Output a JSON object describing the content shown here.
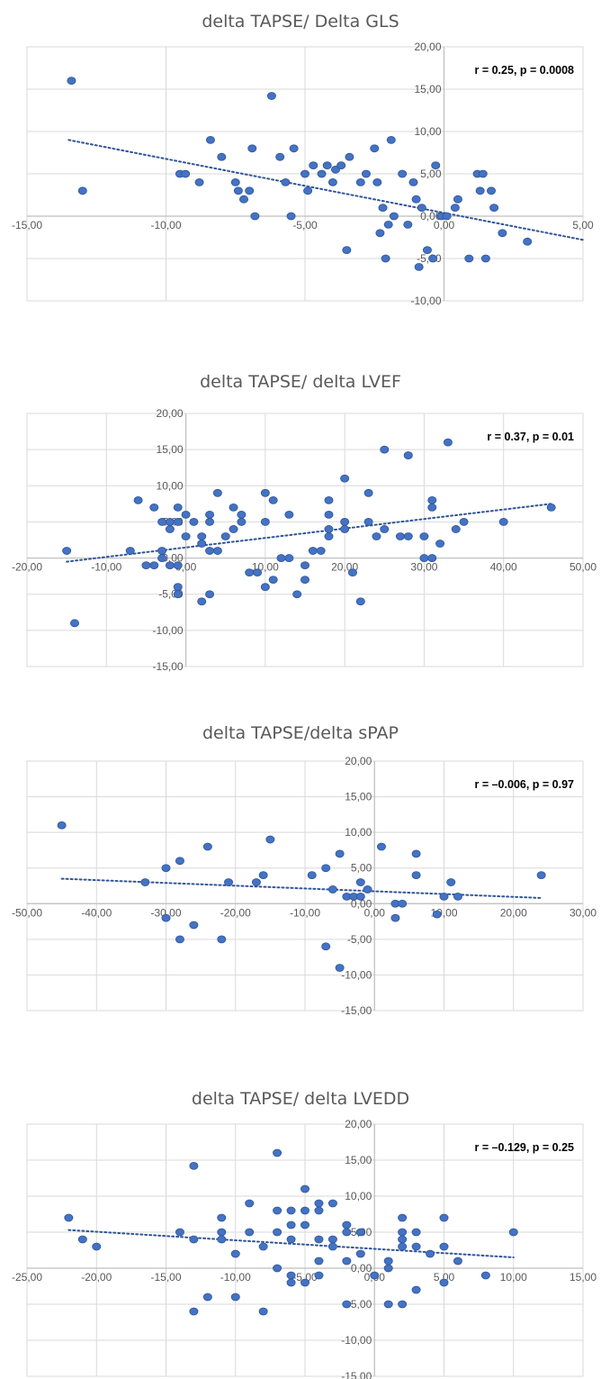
{
  "colors": {
    "point": "#4472C4",
    "point_edge": "#2F5597",
    "trend": "#2F5597",
    "grid": "#D9D9D9",
    "axis": "#BFBFBF",
    "text": "#595959"
  },
  "chart_data": [
    {
      "type": "scatter",
      "title": "delta TAPSE/ Delta GLS",
      "annotation": "r = 0.25, p = 0.0008",
      "xlim": [
        -15,
        5
      ],
      "x_step": 5,
      "ylim": [
        -10,
        20
      ],
      "y_step": 5,
      "x_tick_labels": [
        "-15,00",
        "-10,00",
        "-5,00",
        "0,00",
        "5,00"
      ],
      "y_tick_labels": [
        "-10,00",
        "-5,00",
        "0,00",
        "5,00",
        "10,00",
        "15,00",
        "20,00"
      ],
      "trendline": {
        "type": "linear",
        "dotted": true,
        "from": [
          -13.5,
          9
        ],
        "to": [
          5,
          -2.8
        ]
      },
      "grid": true,
      "points": [
        [
          -13.4,
          16
        ],
        [
          -13,
          3
        ],
        [
          -9.5,
          5
        ],
        [
          -9.3,
          5
        ],
        [
          -8.8,
          4
        ],
        [
          -8.4,
          9
        ],
        [
          -8.0,
          7
        ],
        [
          -7.5,
          4
        ],
        [
          -7.4,
          3
        ],
        [
          -7.2,
          2
        ],
        [
          -7.0,
          3
        ],
        [
          -6.9,
          8
        ],
        [
          -6.8,
          0
        ],
        [
          -6.2,
          14.2
        ],
        [
          -5.9,
          7
        ],
        [
          -5.7,
          4
        ],
        [
          -5.5,
          0
        ],
        [
          -5.4,
          8
        ],
        [
          -5.0,
          5
        ],
        [
          -4.9,
          3
        ],
        [
          -4.7,
          6
        ],
        [
          -4.4,
          5
        ],
        [
          -4.2,
          6
        ],
        [
          -4.0,
          4
        ],
        [
          -3.9,
          5.5
        ],
        [
          -3.7,
          6
        ],
        [
          -3.5,
          -4
        ],
        [
          -3.4,
          7
        ],
        [
          -3.0,
          4
        ],
        [
          -2.8,
          5
        ],
        [
          -2.5,
          8
        ],
        [
          -2.4,
          4
        ],
        [
          -2.3,
          -2
        ],
        [
          -2.2,
          1
        ],
        [
          -2.1,
          -5
        ],
        [
          -2.0,
          -1
        ],
        [
          -1.9,
          9
        ],
        [
          -1.8,
          0
        ],
        [
          -1.5,
          5
        ],
        [
          -1.3,
          -1
        ],
        [
          -1.1,
          4
        ],
        [
          -1.0,
          2
        ],
        [
          -0.9,
          -6
        ],
        [
          -0.8,
          1
        ],
        [
          -0.6,
          -4
        ],
        [
          -0.4,
          -5
        ],
        [
          -0.3,
          6
        ],
        [
          -0.1,
          0
        ],
        [
          0.1,
          0
        ],
        [
          0.4,
          1
        ],
        [
          0.5,
          2
        ],
        [
          0.9,
          -5
        ],
        [
          1.2,
          5
        ],
        [
          1.3,
          3
        ],
        [
          1.4,
          5
        ],
        [
          1.5,
          -5
        ],
        [
          1.7,
          3
        ],
        [
          1.8,
          1
        ],
        [
          2.1,
          -2
        ],
        [
          3.0,
          -3
        ]
      ]
    },
    {
      "type": "scatter",
      "title": "delta TAPSE/ delta LVEF",
      "annotation": "r = 0.37, p = 0.01",
      "xlim": [
        -20,
        50
      ],
      "x_step": 10,
      "ylim": [
        -15,
        20
      ],
      "y_step": 5,
      "x_tick_labels": [
        "-20,00",
        "-10,00",
        "0,00",
        "10,00",
        "20,00",
        "30,00",
        "40,00",
        "50,00"
      ],
      "y_tick_labels": [
        "-15,00",
        "-10,00",
        "-5,00",
        "0,00",
        "5,00",
        "10,00",
        "15,00",
        "20,00"
      ],
      "trendline": {
        "type": "linear",
        "dotted": true,
        "from": [
          -15,
          -0.5
        ],
        "to": [
          46,
          7.5
        ]
      },
      "grid": true,
      "points": [
        [
          -15,
          1
        ],
        [
          -14,
          -9
        ],
        [
          -7,
          1
        ],
        [
          -6,
          8
        ],
        [
          -5,
          -1
        ],
        [
          -4,
          7
        ],
        [
          -4,
          -1
        ],
        [
          -3,
          5
        ],
        [
          -3,
          1
        ],
        [
          -3,
          0
        ],
        [
          -2,
          4
        ],
        [
          -2,
          -1
        ],
        [
          -2,
          5
        ],
        [
          -1,
          7
        ],
        [
          -1,
          5
        ],
        [
          -1,
          -4
        ],
        [
          -1,
          -5
        ],
        [
          -1,
          -1
        ],
        [
          0,
          3
        ],
        [
          0,
          6
        ],
        [
          1,
          5
        ],
        [
          2,
          3
        ],
        [
          2,
          2
        ],
        [
          2,
          -6
        ],
        [
          3,
          5
        ],
        [
          3,
          -5
        ],
        [
          3,
          1
        ],
        [
          3,
          6
        ],
        [
          4,
          1
        ],
        [
          4,
          9
        ],
        [
          5,
          3
        ],
        [
          6,
          4
        ],
        [
          6,
          7
        ],
        [
          7,
          6
        ],
        [
          7,
          5
        ],
        [
          8,
          -2
        ],
        [
          9,
          -2
        ],
        [
          10,
          5
        ],
        [
          10,
          9
        ],
        [
          10,
          -4
        ],
        [
          11,
          -3
        ],
        [
          11,
          8
        ],
        [
          12,
          0
        ],
        [
          13,
          6
        ],
        [
          13,
          0
        ],
        [
          14,
          -5
        ],
        [
          15,
          -1
        ],
        [
          15,
          -3
        ],
        [
          16,
          1
        ],
        [
          17,
          1
        ],
        [
          18,
          8
        ],
        [
          18,
          6
        ],
        [
          18,
          4
        ],
        [
          18,
          3
        ],
        [
          20,
          11
        ],
        [
          20,
          5
        ],
        [
          20,
          4
        ],
        [
          21,
          -2
        ],
        [
          22,
          -6
        ],
        [
          23,
          9
        ],
        [
          23,
          5
        ],
        [
          24,
          3
        ],
        [
          25,
          15
        ],
        [
          25,
          4
        ],
        [
          27,
          3
        ],
        [
          28,
          14.2
        ],
        [
          28,
          3
        ],
        [
          30,
          3
        ],
        [
          30,
          0
        ],
        [
          31,
          7
        ],
        [
          31,
          8
        ],
        [
          31,
          0
        ],
        [
          32,
          2
        ],
        [
          33,
          16
        ],
        [
          34,
          4
        ],
        [
          35,
          5
        ],
        [
          40,
          5
        ],
        [
          46,
          7
        ]
      ]
    },
    {
      "type": "scatter",
      "title": "delta TAPSE/delta sPAP",
      "annotation": "r = –0.006, p = 0.97",
      "xlim": [
        -50,
        30
      ],
      "x_step": 10,
      "ylim": [
        -15,
        20
      ],
      "y_step": 5,
      "x_tick_labels": [
        "-50,00",
        "-40,00",
        "-30,00",
        "-20,00",
        "-10,00",
        "0,00",
        "10,00",
        "20,00",
        "30,00"
      ],
      "y_tick_labels": [
        "-15,00",
        "-10,00",
        "-5,00",
        "0,00",
        "5,00",
        "10,00",
        "15,00",
        "20,00"
      ],
      "trendline": {
        "type": "linear",
        "dotted": true,
        "from": [
          -45,
          3.5
        ],
        "to": [
          24,
          0.8
        ]
      },
      "grid": true,
      "points": [
        [
          -45,
          11
        ],
        [
          -33,
          3
        ],
        [
          -30,
          5
        ],
        [
          -30,
          -2
        ],
        [
          -28,
          6
        ],
        [
          -28,
          -5
        ],
        [
          -26,
          -3
        ],
        [
          -24,
          8
        ],
        [
          -22,
          -5
        ],
        [
          -21,
          3
        ],
        [
          -17,
          3
        ],
        [
          -16,
          4
        ],
        [
          -15,
          9
        ],
        [
          -9,
          4
        ],
        [
          -7,
          5
        ],
        [
          -7,
          -6
        ],
        [
          -6,
          2
        ],
        [
          -5,
          7
        ],
        [
          -5,
          -9
        ],
        [
          -4,
          1
        ],
        [
          -3,
          1
        ],
        [
          -2,
          3
        ],
        [
          -2,
          1
        ],
        [
          -1,
          2
        ],
        [
          1,
          8
        ],
        [
          3,
          0
        ],
        [
          3,
          -2
        ],
        [
          4,
          0
        ],
        [
          6,
          7
        ],
        [
          6,
          4
        ],
        [
          9,
          -1.5
        ],
        [
          10,
          1
        ],
        [
          11,
          3
        ],
        [
          12,
          1
        ],
        [
          24,
          4
        ]
      ]
    },
    {
      "type": "scatter",
      "title": "delta TAPSE/ delta LVEDD",
      "annotation": "r = –0.129, p = 0.25",
      "xlim": [
        -25,
        15
      ],
      "x_step": 5,
      "ylim": [
        -15,
        20
      ],
      "y_step": 5,
      "x_tick_labels": [
        "-25,00",
        "-20,00",
        "-15,00",
        "-10,00",
        "-5,00",
        "0,00",
        "5,00",
        "10,00",
        "15,00"
      ],
      "y_tick_labels": [
        "-15,00",
        "-10,00",
        "-5,00",
        "0,00",
        "5,00",
        "10,00",
        "15,00",
        "20,00"
      ],
      "trendline": {
        "type": "linear",
        "dotted": true,
        "from": [
          -22,
          5.3
        ],
        "to": [
          10,
          1.5
        ]
      },
      "grid": true,
      "points": [
        [
          -22,
          7
        ],
        [
          -21,
          4
        ],
        [
          -20,
          3
        ],
        [
          -14,
          5
        ],
        [
          -13,
          14.2
        ],
        [
          -13,
          4
        ],
        [
          -13,
          -6
        ],
        [
          -12,
          -4
        ],
        [
          -11,
          7
        ],
        [
          -11,
          5
        ],
        [
          -11,
          4
        ],
        [
          -10,
          2
        ],
        [
          -10,
          -4
        ],
        [
          -9,
          9
        ],
        [
          -9,
          5
        ],
        [
          -8,
          3
        ],
        [
          -8,
          -6
        ],
        [
          -7,
          16
        ],
        [
          -7,
          8
        ],
        [
          -7,
          5
        ],
        [
          -7,
          0
        ],
        [
          -6,
          8
        ],
        [
          -6,
          6
        ],
        [
          -6,
          4
        ],
        [
          -6,
          -1
        ],
        [
          -6,
          -2
        ],
        [
          -5,
          11
        ],
        [
          -5,
          8
        ],
        [
          -5,
          6
        ],
        [
          -5,
          -2
        ],
        [
          -4,
          9
        ],
        [
          -4,
          8
        ],
        [
          -4,
          4
        ],
        [
          -4,
          1
        ],
        [
          -4,
          -1
        ],
        [
          -3,
          9
        ],
        [
          -3,
          4
        ],
        [
          -3,
          3
        ],
        [
          -2,
          6
        ],
        [
          -2,
          5
        ],
        [
          -2,
          1
        ],
        [
          -2,
          -5
        ],
        [
          -1,
          5
        ],
        [
          -1,
          2
        ],
        [
          0,
          -1
        ],
        [
          1,
          1
        ],
        [
          1,
          0
        ],
        [
          1,
          -5
        ],
        [
          2,
          7
        ],
        [
          2,
          5
        ],
        [
          2,
          4
        ],
        [
          2,
          3
        ],
        [
          2,
          -5
        ],
        [
          3,
          5
        ],
        [
          3,
          3
        ],
        [
          3,
          -3
        ],
        [
          4,
          2
        ],
        [
          5,
          7
        ],
        [
          5,
          3
        ],
        [
          5,
          -2
        ],
        [
          6,
          1
        ],
        [
          8,
          -1
        ],
        [
          10,
          5
        ]
      ]
    }
  ]
}
